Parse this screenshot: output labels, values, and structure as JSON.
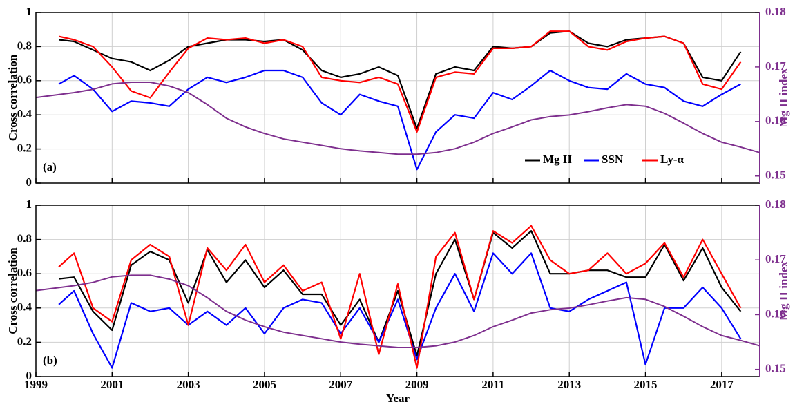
{
  "chart_data": [
    {
      "type": "line",
      "annotation": "(a)",
      "ylabel": "Cross correlation",
      "y2label": "Mg II index",
      "xlim": [
        1999,
        2018
      ],
      "ylim": [
        0,
        1
      ],
      "yticks": [
        0,
        0.2,
        0.4,
        0.6,
        0.8,
        1
      ],
      "y2lim": [
        0.1487,
        0.18
      ],
      "y2ticks": [
        0.15,
        0.16,
        0.17,
        0.18
      ],
      "grid": true,
      "legend": "lower right",
      "x": [
        1999.6,
        2000,
        2000.5,
        2001,
        2001.5,
        2002,
        2002.5,
        2003,
        2003.5,
        2004,
        2004.5,
        2005,
        2005.5,
        2006,
        2006.5,
        2007,
        2007.5,
        2008,
        2008.5,
        2009,
        2009.5,
        2010,
        2010.5,
        2011,
        2011.5,
        2012,
        2012.5,
        2013,
        2013.5,
        2014,
        2014.5,
        2015,
        2015.5,
        2016,
        2016.5,
        2017,
        2017.5
      ],
      "series": [
        {
          "name": "Mg II",
          "color": "#000000",
          "values": [
            0.84,
            0.83,
            0.78,
            0.73,
            0.71,
            0.66,
            0.72,
            0.8,
            0.82,
            0.84,
            0.84,
            0.83,
            0.84,
            0.78,
            0.66,
            0.62,
            0.64,
            0.68,
            0.63,
            0.32,
            0.64,
            0.68,
            0.66,
            0.8,
            0.79,
            0.8,
            0.88,
            0.89,
            0.82,
            0.8,
            0.84,
            0.85,
            0.86,
            0.82,
            0.62,
            0.6,
            0.77
          ]
        },
        {
          "name": "SSN",
          "color": "#0000ff",
          "values": [
            0.58,
            0.63,
            0.55,
            0.42,
            0.48,
            0.47,
            0.45,
            0.55,
            0.62,
            0.59,
            0.62,
            0.66,
            0.66,
            0.62,
            0.47,
            0.4,
            0.52,
            0.48,
            0.45,
            0.08,
            0.3,
            0.4,
            0.38,
            0.53,
            0.49,
            0.57,
            0.66,
            0.6,
            0.56,
            0.55,
            0.64,
            0.58,
            0.56,
            0.48,
            0.45,
            0.52,
            0.58
          ]
        },
        {
          "name": "Ly-α",
          "color": "#ff0000",
          "values": [
            0.86,
            0.84,
            0.8,
            0.68,
            0.54,
            0.5,
            0.65,
            0.79,
            0.85,
            0.84,
            0.85,
            0.82,
            0.84,
            0.8,
            0.62,
            0.6,
            0.59,
            0.62,
            0.58,
            0.3,
            0.62,
            0.65,
            0.64,
            0.79,
            0.79,
            0.8,
            0.89,
            0.89,
            0.8,
            0.78,
            0.83,
            0.85,
            0.86,
            0.82,
            0.58,
            0.55,
            0.71
          ]
        },
        {
          "color": "#7e2f8e",
          "axis": "y2",
          "x": [
            1999,
            2000,
            2000.5,
            2001,
            2001.5,
            2002,
            2002.5,
            2003,
            2003.5,
            2004,
            2004.5,
            2005,
            2005.5,
            2006,
            2006.5,
            2007,
            2007.5,
            2008,
            2008.5,
            2009,
            2009.5,
            2010,
            2010.5,
            2011,
            2011.5,
            2012,
            2012.5,
            2013,
            2013.5,
            2014,
            2014.5,
            2015,
            2015.5,
            2016,
            2016.5,
            2017,
            2017.5,
            2018
          ],
          "values": [
            0.1644,
            0.1653,
            0.1659,
            0.1669,
            0.1672,
            0.1672,
            0.1665,
            0.1653,
            0.1631,
            0.1606,
            0.159,
            0.1578,
            0.1568,
            0.1562,
            0.1556,
            0.155,
            0.1546,
            0.1543,
            0.154,
            0.154,
            0.1543,
            0.155,
            0.1562,
            0.1578,
            0.159,
            0.1603,
            0.1609,
            0.1612,
            0.1618,
            0.1625,
            0.1631,
            0.1628,
            0.1615,
            0.1597,
            0.1578,
            0.1562,
            0.1553,
            0.1543
          ]
        }
      ]
    },
    {
      "type": "line",
      "annotation": "(b)",
      "ylabel": "Cross correlation",
      "y2label": "Mg II index",
      "xlabel": "Year",
      "xlim": [
        1999,
        2018
      ],
      "xticks": [
        1999,
        2001,
        2003,
        2005,
        2007,
        2009,
        2011,
        2013,
        2015,
        2017
      ],
      "ylim": [
        0,
        1
      ],
      "yticks": [
        0,
        0.2,
        0.4,
        0.6,
        0.8,
        1
      ],
      "y2lim": [
        0.1487,
        0.18
      ],
      "y2ticks": [
        0.15,
        0.16,
        0.17,
        0.18
      ],
      "grid": true,
      "x": [
        1999.6,
        2000,
        2000.5,
        2001,
        2001.5,
        2002,
        2002.5,
        2003,
        2003.5,
        2004,
        2004.5,
        2005,
        2005.5,
        2006,
        2006.5,
        2007,
        2007.5,
        2008,
        2008.5,
        2009,
        2009.5,
        2010,
        2010.5,
        2011,
        2011.5,
        2012,
        2012.5,
        2013,
        2013.5,
        2014,
        2014.5,
        2015,
        2015.5,
        2016,
        2016.5,
        2017,
        2017.5
      ],
      "series": [
        {
          "color": "#000000",
          "values": [
            0.57,
            0.58,
            0.38,
            0.27,
            0.65,
            0.73,
            0.68,
            0.43,
            0.74,
            0.55,
            0.68,
            0.52,
            0.62,
            0.48,
            0.48,
            0.3,
            0.45,
            0.2,
            0.5,
            0.12,
            0.6,
            0.8,
            0.45,
            0.84,
            0.75,
            0.85,
            0.6,
            0.6,
            0.62,
            0.62,
            0.58,
            0.58,
            0.77,
            0.56,
            0.75,
            0.52,
            0.38
          ]
        },
        {
          "color": "#0000ff",
          "values": [
            0.42,
            0.5,
            0.25,
            0.05,
            0.43,
            0.38,
            0.4,
            0.3,
            0.38,
            0.3,
            0.4,
            0.25,
            0.4,
            0.45,
            0.43,
            0.25,
            0.4,
            0.2,
            0.45,
            0.1,
            0.4,
            0.6,
            0.38,
            0.72,
            0.6,
            0.72,
            0.4,
            0.38,
            0.45,
            0.5,
            0.55,
            0.07,
            0.4,
            0.4,
            0.52,
            0.4,
            0.22
          ]
        },
        {
          "color": "#ff0000",
          "values": [
            0.64,
            0.72,
            0.4,
            0.32,
            0.68,
            0.77,
            0.7,
            0.3,
            0.75,
            0.62,
            0.77,
            0.55,
            0.65,
            0.5,
            0.55,
            0.22,
            0.6,
            0.13,
            0.54,
            0.05,
            0.7,
            0.84,
            0.45,
            0.85,
            0.78,
            0.88,
            0.68,
            0.6,
            0.62,
            0.72,
            0.6,
            0.66,
            0.78,
            0.58,
            0.8,
            0.6,
            0.4
          ]
        },
        {
          "color": "#7e2f8e",
          "axis": "y2",
          "x": [
            1999,
            2000,
            2000.5,
            2001,
            2001.5,
            2002,
            2002.5,
            2003,
            2003.5,
            2004,
            2004.5,
            2005,
            2005.5,
            2006,
            2006.5,
            2007,
            2007.5,
            2008,
            2008.5,
            2009,
            2009.5,
            2010,
            2010.5,
            2011,
            2011.5,
            2012,
            2012.5,
            2013,
            2013.5,
            2014,
            2014.5,
            2015,
            2015.5,
            2016,
            2016.5,
            2017,
            2017.5,
            2018
          ],
          "values": [
            0.1644,
            0.1653,
            0.1659,
            0.1669,
            0.1672,
            0.1672,
            0.1665,
            0.1653,
            0.1631,
            0.1606,
            0.159,
            0.1578,
            0.1568,
            0.1562,
            0.1556,
            0.155,
            0.1546,
            0.1543,
            0.154,
            0.154,
            0.1543,
            0.155,
            0.1562,
            0.1578,
            0.159,
            0.1603,
            0.1609,
            0.1612,
            0.1618,
            0.1625,
            0.1631,
            0.1628,
            0.1615,
            0.1597,
            0.1578,
            0.1562,
            0.1553,
            0.1543
          ]
        }
      ]
    }
  ]
}
